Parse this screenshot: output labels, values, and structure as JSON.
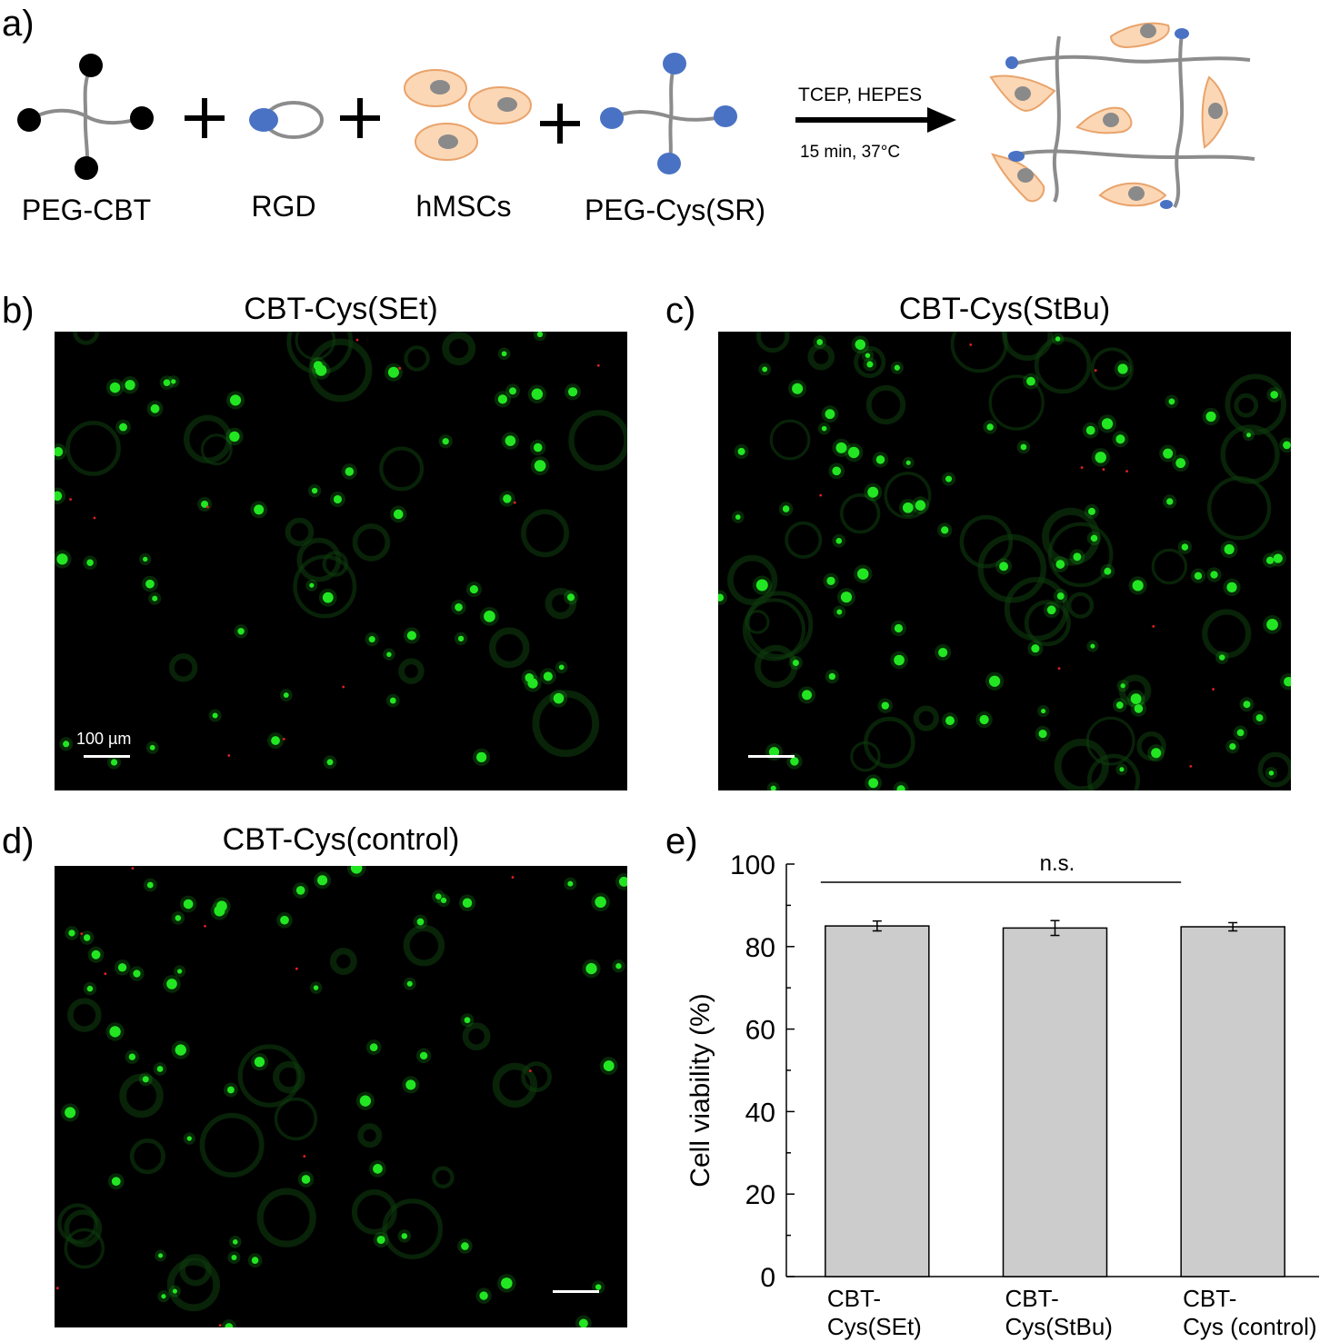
{
  "panel_labels": {
    "a": "a)",
    "b": "b)",
    "c": "c)",
    "d": "d)",
    "e": "e)"
  },
  "schematic": {
    "components": [
      "PEG-CBT",
      "RGD",
      "hMSCs",
      "PEG-Cys(SR)"
    ],
    "plus": "+",
    "conditions_top": "TCEP, HEPES",
    "conditions_bottom": "15 min, 37°C",
    "colors": {
      "cbt_end": "#000000",
      "cys_end": "#4a72c4",
      "cell_fill": "#fbd7b5",
      "cell_stroke": "#e9a36b",
      "nucleus": "#888888",
      "linker": "#8c8c8c"
    }
  },
  "micrographs": {
    "b": {
      "title": "CBT-Cys(SEt)",
      "scale_label": "100 µm"
    },
    "c": {
      "title": "CBT-Cys(StBu)"
    },
    "d": {
      "title": "CBT-Cys(control)"
    },
    "colors": {
      "live": "#22e622",
      "dead": "#e02020",
      "background": "#000000"
    }
  },
  "chart_data": {
    "type": "bar",
    "categories": [
      [
        "CBT-",
        "Cys(SEt)"
      ],
      [
        "CBT-",
        "Cys(StBu)"
      ],
      [
        "CBT-",
        "Cys (control)"
      ]
    ],
    "values": [
      85.0,
      84.5,
      84.8
    ],
    "errors": [
      1.2,
      1.8,
      1.0
    ],
    "ylabel": "Cell viability (%)",
    "ylim": [
      0,
      100
    ],
    "yticks": [
      0,
      20,
      40,
      60,
      80,
      100
    ],
    "annotation": "n.s.",
    "bar_color": "#cccccc",
    "grid": false
  }
}
